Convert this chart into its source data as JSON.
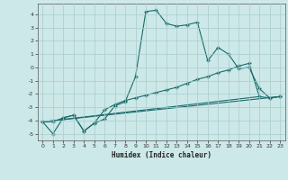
{
  "xlabel": "Humidex (Indice chaleur)",
  "bg_color": "#cde8e8",
  "grid_color": "#a8cccc",
  "line_color": "#1a6b6b",
  "xlim": [
    -0.5,
    23.5
  ],
  "ylim": [
    -5.5,
    4.8
  ],
  "xticks": [
    0,
    1,
    2,
    3,
    4,
    5,
    6,
    7,
    8,
    9,
    10,
    11,
    12,
    13,
    14,
    15,
    16,
    17,
    18,
    19,
    20,
    21,
    22,
    23
  ],
  "yticks": [
    -5,
    -4,
    -3,
    -2,
    -1,
    0,
    1,
    2,
    3,
    4
  ],
  "lines": [
    {
      "x": [
        0,
        1,
        2,
        3,
        4,
        5,
        6,
        7,
        8,
        9,
        10,
        11,
        12,
        13,
        14,
        15,
        16,
        17,
        18,
        19,
        20,
        21,
        22,
        23
      ],
      "y": [
        -4.1,
        -5.0,
        -3.8,
        -3.6,
        -4.8,
        -4.2,
        -3.9,
        -2.9,
        -2.6,
        -0.7,
        4.2,
        4.3,
        3.3,
        3.1,
        3.2,
        3.4,
        0.5,
        1.5,
        1.0,
        -0.1,
        0.0,
        -1.6,
        -2.3,
        -2.2
      ],
      "marker": true
    },
    {
      "x": [
        0,
        1,
        2,
        3,
        4,
        5,
        6,
        7,
        8,
        9,
        10,
        11,
        12,
        13,
        14,
        15,
        16,
        17,
        18,
        19,
        20,
        21,
        22,
        23
      ],
      "y": [
        -4.1,
        -4.1,
        -3.8,
        -3.6,
        -4.8,
        -4.2,
        -3.2,
        -2.8,
        -2.5,
        -2.3,
        -2.1,
        -1.9,
        -1.7,
        -1.5,
        -1.2,
        -0.9,
        -0.7,
        -0.4,
        -0.2,
        0.1,
        0.3,
        -2.2,
        -2.3,
        -2.2
      ],
      "marker": true
    },
    {
      "x": [
        0,
        23
      ],
      "y": [
        -4.1,
        -2.2
      ],
      "marker": false
    },
    {
      "x": [
        0,
        21
      ],
      "y": [
        -4.1,
        -2.2
      ],
      "marker": false
    }
  ]
}
